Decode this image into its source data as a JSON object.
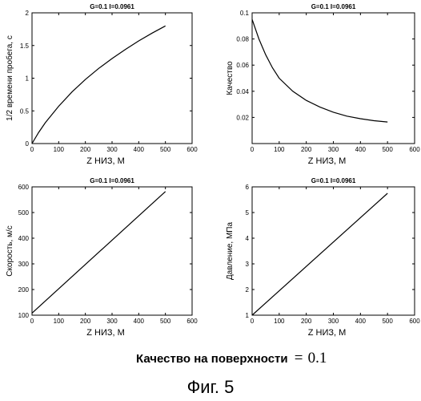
{
  "figure": {
    "footer_label": "Качество на поверхности",
    "footer_eq": "=",
    "footer_value": "0.1",
    "caption": "Фиг. 5"
  },
  "chart_data": [
    {
      "type": "line",
      "title": "G=0.1 I=0.0961",
      "xlabel": "Z НИЗ, М",
      "ylabel": "1/2 времени пробега, с",
      "xlim": [
        0,
        600
      ],
      "ylim": [
        0,
        2
      ],
      "xticks": [
        "0",
        "100",
        "200",
        "300",
        "400",
        "500",
        "600"
      ],
      "yticks": [
        "0",
        "0.5",
        "1",
        "1.5",
        "2"
      ],
      "x": [
        0,
        25,
        50,
        100,
        150,
        200,
        250,
        300,
        350,
        400,
        450,
        500
      ],
      "y": [
        0.0,
        0.17,
        0.32,
        0.57,
        0.79,
        0.98,
        1.15,
        1.3,
        1.44,
        1.57,
        1.69,
        1.8
      ]
    },
    {
      "type": "line",
      "title": "G=0.1 I=0.0961",
      "xlabel": "Z НИЗ, М",
      "ylabel": "Качество",
      "xlim": [
        0,
        600
      ],
      "ylim": [
        0.0,
        0.1
      ],
      "xticks": [
        "0",
        "100",
        "200",
        "300",
        "400",
        "500",
        "600"
      ],
      "yticks": [
        "",
        "0.02",
        "0.04",
        "0.06",
        "0.08",
        "0.1"
      ],
      "x": [
        0,
        25,
        50,
        75,
        100,
        150,
        200,
        250,
        300,
        350,
        400,
        450,
        500
      ],
      "y": [
        0.095,
        0.08,
        0.068,
        0.058,
        0.05,
        0.04,
        0.033,
        0.028,
        0.024,
        0.021,
        0.019,
        0.0175,
        0.0165
      ]
    },
    {
      "type": "line",
      "title": "G=0.1 I=0.0961",
      "xlabel": "Z НИЗ, М",
      "ylabel": "Скорость, м/с",
      "xlim": [
        0,
        600
      ],
      "ylim": [
        100,
        600
      ],
      "xticks": [
        "0",
        "100",
        "200",
        "300",
        "400",
        "500",
        "600"
      ],
      "yticks": [
        "100",
        "200",
        "300",
        "400",
        "500",
        "600"
      ],
      "x": [
        0,
        500
      ],
      "y": [
        108,
        582
      ]
    },
    {
      "type": "line",
      "title": "G=0.1 I=0.0961",
      "xlabel": "Z НИЗ, М",
      "ylabel": "Давление, МПа",
      "xlim": [
        0,
        600
      ],
      "ylim": [
        1,
        6
      ],
      "xticks": [
        "0",
        "100",
        "200",
        "300",
        "400",
        "500",
        "600"
      ],
      "yticks": [
        "1",
        "2",
        "3",
        "4",
        "5",
        "6"
      ],
      "x": [
        0,
        500
      ],
      "y": [
        1.0,
        5.75
      ]
    }
  ]
}
